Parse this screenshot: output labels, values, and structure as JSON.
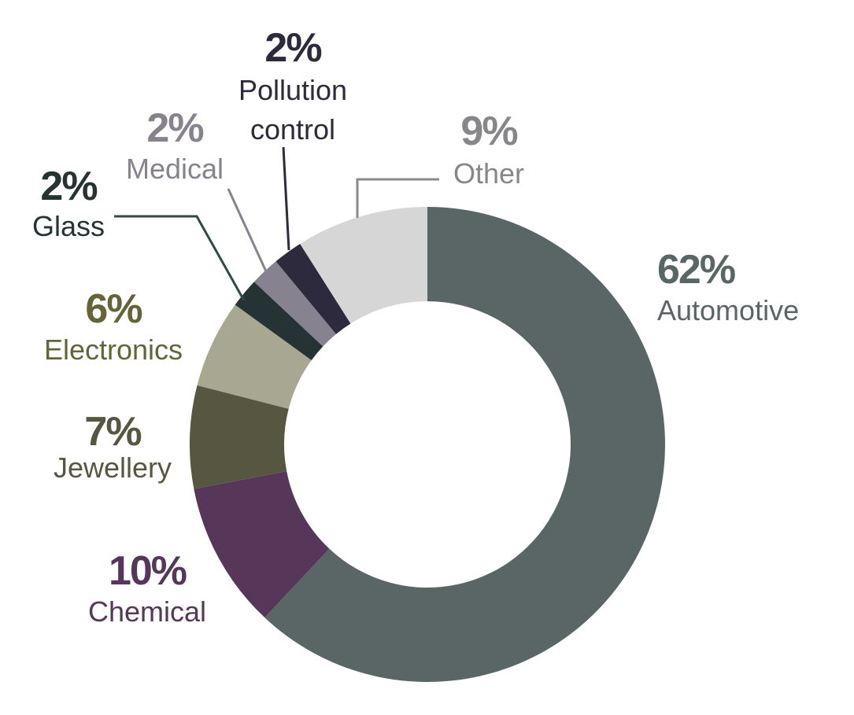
{
  "chart_data": {
    "type": "pie",
    "variant": "donut",
    "legend": "none",
    "slices": [
      {
        "label": "Automotive",
        "value": 62,
        "value_label": "62%",
        "color": "#5a6666"
      },
      {
        "label": "Chemical",
        "value": 10,
        "value_label": "10%",
        "color": "#56375a"
      },
      {
        "label": "Jewellery",
        "value": 7,
        "value_label": "7%",
        "color": "#575640"
      },
      {
        "label": "Electronics",
        "value": 6,
        "value_label": "6%",
        "color": "#a8a792"
      },
      {
        "label": "Glass",
        "value": 2,
        "value_label": "2%",
        "color": "#253334"
      },
      {
        "label": "Medical",
        "value": 2,
        "value_label": "2%",
        "color": "#87828f"
      },
      {
        "label": "Pollution control",
        "label_lines": [
          "Pollution",
          "control"
        ],
        "value": 2,
        "value_label": "2%",
        "color": "#2e2a3d"
      },
      {
        "label": "Other",
        "value": 9,
        "value_label": "9%",
        "color": "#d6d6d6"
      }
    ],
    "label_colors": {
      "Automotive": "#5a6666",
      "Chemical": "#56375a",
      "Jewellery": "#575640",
      "Electronics": "#66633a",
      "Glass": "#253334",
      "Medical": "#87828f",
      "Pollution control": "#2e2a3d",
      "Other": "#87878a"
    }
  }
}
